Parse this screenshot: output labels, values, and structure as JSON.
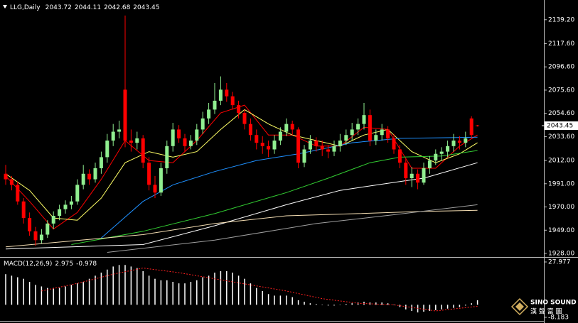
{
  "chart_data": {
    "type": "candlestick",
    "symbol": "LLG,Daily",
    "up_color": "#90ee90",
    "down_color": "#ff0000",
    "candles": [
      [
        2000,
        2008,
        1990,
        1995
      ],
      [
        1995,
        1998,
        1985,
        1990
      ],
      [
        1990,
        1993,
        1972,
        1975
      ],
      [
        1975,
        1978,
        1955,
        1960
      ],
      [
        1960,
        1965,
        1944,
        1948
      ],
      [
        1948,
        1952,
        1935,
        1940
      ],
      [
        1940,
        1950,
        1937,
        1945
      ],
      [
        1945,
        1958,
        1942,
        1955
      ],
      [
        1955,
        1966,
        1950,
        1962
      ],
      [
        1962,
        1972,
        1958,
        1968
      ],
      [
        1968,
        1976,
        1964,
        1972
      ],
      [
        1972,
        1980,
        1968,
        1975
      ],
      [
        1975,
        1995,
        1972,
        1990
      ],
      [
        1990,
        2008,
        1986,
        2000
      ],
      [
        2000,
        2004,
        1990,
        1995
      ],
      [
        1995,
        2010,
        1992,
        2005
      ],
      [
        2005,
        2020,
        2000,
        2015
      ],
      [
        2015,
        2036,
        2010,
        2030
      ],
      [
        2030,
        2045,
        2025,
        2038
      ],
      [
        2038,
        2048,
        2032,
        2040
      ],
      [
        2076,
        2143,
        2024,
        2030
      ],
      [
        2030,
        2040,
        2020,
        2028
      ],
      [
        2028,
        2038,
        2022,
        2032
      ],
      [
        2032,
        2035,
        2005,
        2010
      ],
      [
        2010,
        2015,
        1985,
        1990
      ],
      [
        1990,
        1998,
        1978,
        1983
      ],
      [
        1983,
        2010,
        1980,
        2005
      ],
      [
        2005,
        2030,
        2000,
        2025
      ],
      [
        2025,
        2046,
        2020,
        2040
      ],
      [
        2040,
        2044,
        2028,
        2032
      ],
      [
        2032,
        2036,
        2020,
        2025
      ],
      [
        2025,
        2035,
        2022,
        2030
      ],
      [
        2030,
        2045,
        2026,
        2040
      ],
      [
        2040,
        2056,
        2036,
        2050
      ],
      [
        2050,
        2064,
        2045,
        2058
      ],
      [
        2058,
        2082,
        2054,
        2066
      ],
      [
        2066,
        2088,
        2062,
        2076
      ],
      [
        2076,
        2082,
        2065,
        2070
      ],
      [
        2070,
        2074,
        2058,
        2062
      ],
      [
        2062,
        2066,
        2050,
        2055
      ],
      [
        2055,
        2058,
        2040,
        2045
      ],
      [
        2045,
        2050,
        2030,
        2035
      ],
      [
        2035,
        2040,
        2022,
        2028
      ],
      [
        2028,
        2034,
        2018,
        2025
      ],
      [
        2025,
        2030,
        2015,
        2022
      ],
      [
        2022,
        2035,
        2018,
        2030
      ],
      [
        2030,
        2042,
        2026,
        2038
      ],
      [
        2038,
        2050,
        2034,
        2045
      ],
      [
        2045,
        2048,
        2035,
        2040
      ],
      [
        2040,
        2042,
        2005,
        2010
      ],
      [
        2010,
        2026,
        2006,
        2022
      ],
      [
        2022,
        2035,
        2018,
        2030
      ],
      [
        2030,
        2033,
        2020,
        2025
      ],
      [
        2025,
        2030,
        2016,
        2022
      ],
      [
        2022,
        2026,
        2014,
        2020
      ],
      [
        2020,
        2030,
        2016,
        2025
      ],
      [
        2025,
        2036,
        2020,
        2030
      ],
      [
        2030,
        2040,
        2026,
        2035
      ],
      [
        2035,
        2046,
        2030,
        2040
      ],
      [
        2040,
        2050,
        2035,
        2045
      ],
      [
        2045,
        2064,
        2040,
        2053
      ],
      [
        2053,
        2058,
        2025,
        2030
      ],
      [
        2030,
        2040,
        2026,
        2035
      ],
      [
        2035,
        2045,
        2030,
        2040
      ],
      [
        2040,
        2043,
        2028,
        2032
      ],
      [
        2032,
        2036,
        2018,
        2022
      ],
      [
        2022,
        2026,
        2005,
        2010
      ],
      [
        2010,
        2014,
        1990,
        1996
      ],
      [
        1996,
        2006,
        1988,
        2000
      ],
      [
        2000,
        2004,
        1986,
        1992
      ],
      [
        1992,
        2010,
        1990,
        2005
      ],
      [
        2005,
        2016,
        2000,
        2012
      ],
      [
        2012,
        2022,
        2008,
        2018
      ],
      [
        2018,
        2024,
        2012,
        2020
      ],
      [
        2020,
        2030,
        2015,
        2025
      ],
      [
        2025,
        2036,
        2020,
        2030
      ],
      [
        2030,
        2034,
        2022,
        2028
      ],
      [
        2028,
        2038,
        2024,
        2032
      ],
      [
        2050,
        2052,
        2032,
        2035
      ],
      [
        2043.72,
        2044.11,
        2042.68,
        2043.45
      ]
    ],
    "ylim": [
      1924.8,
      2155.1
    ],
    "yticks": [
      {
        "value": 2139.2,
        "label": "2139.20"
      },
      {
        "value": 2117.6,
        "label": "2117.60"
      },
      {
        "value": 2096.6,
        "label": "2096.60"
      },
      {
        "value": 2075.6,
        "label": "2075.60"
      },
      {
        "value": 2054.6,
        "label": "2054.60"
      },
      {
        "value": 2033.6,
        "label": "2033.60"
      },
      {
        "value": 2012,
        "label": "2012.00"
      },
      {
        "value": 1991,
        "label": "1991.00"
      },
      {
        "value": 1970,
        "label": "1970.00"
      },
      {
        "value": 1949,
        "label": "1949.00"
      },
      {
        "value": 1928,
        "label": "1928.00"
      }
    ],
    "lines": [
      {
        "color": "#ff0000",
        "x": [
          0,
          4,
          8,
          12,
          16,
          20,
          24,
          28,
          32,
          36,
          40,
          44,
          48,
          52,
          56,
          60,
          64,
          68,
          72,
          76,
          79
        ],
        "values": [
          1998,
          1975,
          1950,
          1965,
          1995,
          2030,
          2012,
          2010,
          2030,
          2055,
          2062,
          2035,
          2035,
          2025,
          2025,
          2042,
          2040,
          2005,
          2005,
          2025,
          2035
        ]
      },
      {
        "color": "#ffff66",
        "x": [
          0,
          4,
          8,
          12,
          16,
          20,
          24,
          28,
          32,
          36,
          40,
          44,
          48,
          52,
          56,
          60,
          64,
          68,
          72,
          76,
          79
        ],
        "values": [
          2000,
          1985,
          1960,
          1958,
          1978,
          2010,
          2020,
          2015,
          2020,
          2040,
          2058,
          2045,
          2035,
          2030,
          2025,
          2035,
          2040,
          2020,
          2010,
          2018,
          2028
        ]
      },
      {
        "color": "#1e90ff",
        "x": [
          16,
          23,
          28,
          35,
          42,
          49,
          58,
          66,
          79
        ],
        "values": [
          1942,
          1975,
          1990,
          2002,
          2012,
          2018,
          2028,
          2032,
          2033
        ]
      },
      {
        "color": "#32cd32",
        "x": [
          11,
          23,
          35,
          47,
          54,
          61,
          66,
          73,
          79
        ],
        "values": [
          1936,
          1948,
          1964,
          1983,
          1996,
          2010,
          2015,
          2016,
          2021
        ]
      },
      {
        "color": "#ffffff",
        "x": [
          0,
          23,
          35,
          47,
          56,
          66,
          70,
          79
        ],
        "values": [
          1932,
          1936,
          1953,
          1972,
          1985,
          1993,
          1996,
          2010
        ]
      },
      {
        "color": "#f5deb3",
        "x": [
          0,
          23,
          35,
          47,
          59,
          70,
          79
        ],
        "values": [
          1934,
          1945,
          1955,
          1962,
          1964,
          1966,
          1967
        ]
      },
      {
        "color": "#a0a0a0",
        "x": [
          17,
          35,
          52,
          65,
          79
        ],
        "values": [
          1929,
          1940,
          1955,
          1963,
          1972
        ]
      }
    ],
    "macd": {
      "label": "MACD(12,26,9)",
      "color": "#ffffff",
      "hist": [
        20,
        19,
        18,
        17,
        15,
        13,
        12,
        11,
        11,
        11,
        12,
        13,
        14,
        15,
        17,
        19,
        21,
        23,
        25,
        26,
        26,
        25,
        24,
        22,
        19,
        17,
        16,
        16,
        15,
        14,
        14,
        15,
        16,
        18,
        19,
        21,
        22,
        22,
        21,
        19,
        17,
        14,
        11,
        9,
        7,
        6,
        6,
        6,
        5,
        3,
        2,
        1,
        0.5,
        0,
        -0.5,
        -0.5,
        0,
        0.5,
        1,
        1.5,
        2,
        1.5,
        1.5,
        1.5,
        1,
        0,
        -1.5,
        -3,
        -4,
        -5,
        -4.5,
        -4,
        -3.5,
        -3,
        -2.5,
        -2,
        -1.5,
        -0.5,
        1,
        2.975
      ],
      "signal": {
        "color": "#ff2020",
        "x": [
          6,
          12,
          18,
          23,
          29,
          35,
          41,
          47,
          53,
          59,
          65,
          72,
          79
        ],
        "values": [
          9,
          14,
          20,
          24,
          21,
          17,
          13,
          9,
          4,
          1,
          0,
          -4,
          -0.978
        ]
      },
      "ylim": [
        -10.5,
        30.76
      ],
      "yticks": [
        27.977,
        -8.183
      ]
    }
  },
  "watermark": {
    "brand": "SINO SOUND",
    "subtitle": "漢 聲 富 圖"
  }
}
